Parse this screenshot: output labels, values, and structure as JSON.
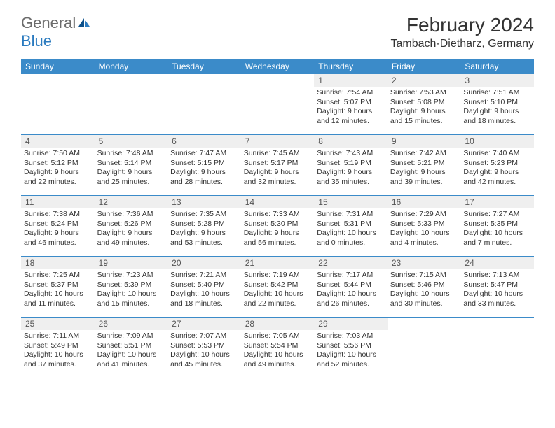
{
  "logo": {
    "text1": "General",
    "text2": "Blue"
  },
  "title": "February 2024",
  "location": "Tambach-Dietharz, Germany",
  "colors": {
    "header_bg": "#3b8bc9",
    "header_text": "#ffffff",
    "daynum_bg": "#efefef",
    "border": "#3b8bc9",
    "text": "#333333",
    "logo_gray": "#6b6b6b",
    "logo_blue": "#2b7bbf"
  },
  "weekdays": [
    "Sunday",
    "Monday",
    "Tuesday",
    "Wednesday",
    "Thursday",
    "Friday",
    "Saturday"
  ],
  "weeks": [
    [
      {
        "n": "",
        "sr": "",
        "ss": "",
        "dl": ""
      },
      {
        "n": "",
        "sr": "",
        "ss": "",
        "dl": ""
      },
      {
        "n": "",
        "sr": "",
        "ss": "",
        "dl": ""
      },
      {
        "n": "",
        "sr": "",
        "ss": "",
        "dl": ""
      },
      {
        "n": "1",
        "sr": "Sunrise: 7:54 AM",
        "ss": "Sunset: 5:07 PM",
        "dl": "Daylight: 9 hours and 12 minutes."
      },
      {
        "n": "2",
        "sr": "Sunrise: 7:53 AM",
        "ss": "Sunset: 5:08 PM",
        "dl": "Daylight: 9 hours and 15 minutes."
      },
      {
        "n": "3",
        "sr": "Sunrise: 7:51 AM",
        "ss": "Sunset: 5:10 PM",
        "dl": "Daylight: 9 hours and 18 minutes."
      }
    ],
    [
      {
        "n": "4",
        "sr": "Sunrise: 7:50 AM",
        "ss": "Sunset: 5:12 PM",
        "dl": "Daylight: 9 hours and 22 minutes."
      },
      {
        "n": "5",
        "sr": "Sunrise: 7:48 AM",
        "ss": "Sunset: 5:14 PM",
        "dl": "Daylight: 9 hours and 25 minutes."
      },
      {
        "n": "6",
        "sr": "Sunrise: 7:47 AM",
        "ss": "Sunset: 5:15 PM",
        "dl": "Daylight: 9 hours and 28 minutes."
      },
      {
        "n": "7",
        "sr": "Sunrise: 7:45 AM",
        "ss": "Sunset: 5:17 PM",
        "dl": "Daylight: 9 hours and 32 minutes."
      },
      {
        "n": "8",
        "sr": "Sunrise: 7:43 AM",
        "ss": "Sunset: 5:19 PM",
        "dl": "Daylight: 9 hours and 35 minutes."
      },
      {
        "n": "9",
        "sr": "Sunrise: 7:42 AM",
        "ss": "Sunset: 5:21 PM",
        "dl": "Daylight: 9 hours and 39 minutes."
      },
      {
        "n": "10",
        "sr": "Sunrise: 7:40 AM",
        "ss": "Sunset: 5:23 PM",
        "dl": "Daylight: 9 hours and 42 minutes."
      }
    ],
    [
      {
        "n": "11",
        "sr": "Sunrise: 7:38 AM",
        "ss": "Sunset: 5:24 PM",
        "dl": "Daylight: 9 hours and 46 minutes."
      },
      {
        "n": "12",
        "sr": "Sunrise: 7:36 AM",
        "ss": "Sunset: 5:26 PM",
        "dl": "Daylight: 9 hours and 49 minutes."
      },
      {
        "n": "13",
        "sr": "Sunrise: 7:35 AM",
        "ss": "Sunset: 5:28 PM",
        "dl": "Daylight: 9 hours and 53 minutes."
      },
      {
        "n": "14",
        "sr": "Sunrise: 7:33 AM",
        "ss": "Sunset: 5:30 PM",
        "dl": "Daylight: 9 hours and 56 minutes."
      },
      {
        "n": "15",
        "sr": "Sunrise: 7:31 AM",
        "ss": "Sunset: 5:31 PM",
        "dl": "Daylight: 10 hours and 0 minutes."
      },
      {
        "n": "16",
        "sr": "Sunrise: 7:29 AM",
        "ss": "Sunset: 5:33 PM",
        "dl": "Daylight: 10 hours and 4 minutes."
      },
      {
        "n": "17",
        "sr": "Sunrise: 7:27 AM",
        "ss": "Sunset: 5:35 PM",
        "dl": "Daylight: 10 hours and 7 minutes."
      }
    ],
    [
      {
        "n": "18",
        "sr": "Sunrise: 7:25 AM",
        "ss": "Sunset: 5:37 PM",
        "dl": "Daylight: 10 hours and 11 minutes."
      },
      {
        "n": "19",
        "sr": "Sunrise: 7:23 AM",
        "ss": "Sunset: 5:39 PM",
        "dl": "Daylight: 10 hours and 15 minutes."
      },
      {
        "n": "20",
        "sr": "Sunrise: 7:21 AM",
        "ss": "Sunset: 5:40 PM",
        "dl": "Daylight: 10 hours and 18 minutes."
      },
      {
        "n": "21",
        "sr": "Sunrise: 7:19 AM",
        "ss": "Sunset: 5:42 PM",
        "dl": "Daylight: 10 hours and 22 minutes."
      },
      {
        "n": "22",
        "sr": "Sunrise: 7:17 AM",
        "ss": "Sunset: 5:44 PM",
        "dl": "Daylight: 10 hours and 26 minutes."
      },
      {
        "n": "23",
        "sr": "Sunrise: 7:15 AM",
        "ss": "Sunset: 5:46 PM",
        "dl": "Daylight: 10 hours and 30 minutes."
      },
      {
        "n": "24",
        "sr": "Sunrise: 7:13 AM",
        "ss": "Sunset: 5:47 PM",
        "dl": "Daylight: 10 hours and 33 minutes."
      }
    ],
    [
      {
        "n": "25",
        "sr": "Sunrise: 7:11 AM",
        "ss": "Sunset: 5:49 PM",
        "dl": "Daylight: 10 hours and 37 minutes."
      },
      {
        "n": "26",
        "sr": "Sunrise: 7:09 AM",
        "ss": "Sunset: 5:51 PM",
        "dl": "Daylight: 10 hours and 41 minutes."
      },
      {
        "n": "27",
        "sr": "Sunrise: 7:07 AM",
        "ss": "Sunset: 5:53 PM",
        "dl": "Daylight: 10 hours and 45 minutes."
      },
      {
        "n": "28",
        "sr": "Sunrise: 7:05 AM",
        "ss": "Sunset: 5:54 PM",
        "dl": "Daylight: 10 hours and 49 minutes."
      },
      {
        "n": "29",
        "sr": "Sunrise: 7:03 AM",
        "ss": "Sunset: 5:56 PM",
        "dl": "Daylight: 10 hours and 52 minutes."
      },
      {
        "n": "",
        "sr": "",
        "ss": "",
        "dl": ""
      },
      {
        "n": "",
        "sr": "",
        "ss": "",
        "dl": ""
      }
    ]
  ]
}
